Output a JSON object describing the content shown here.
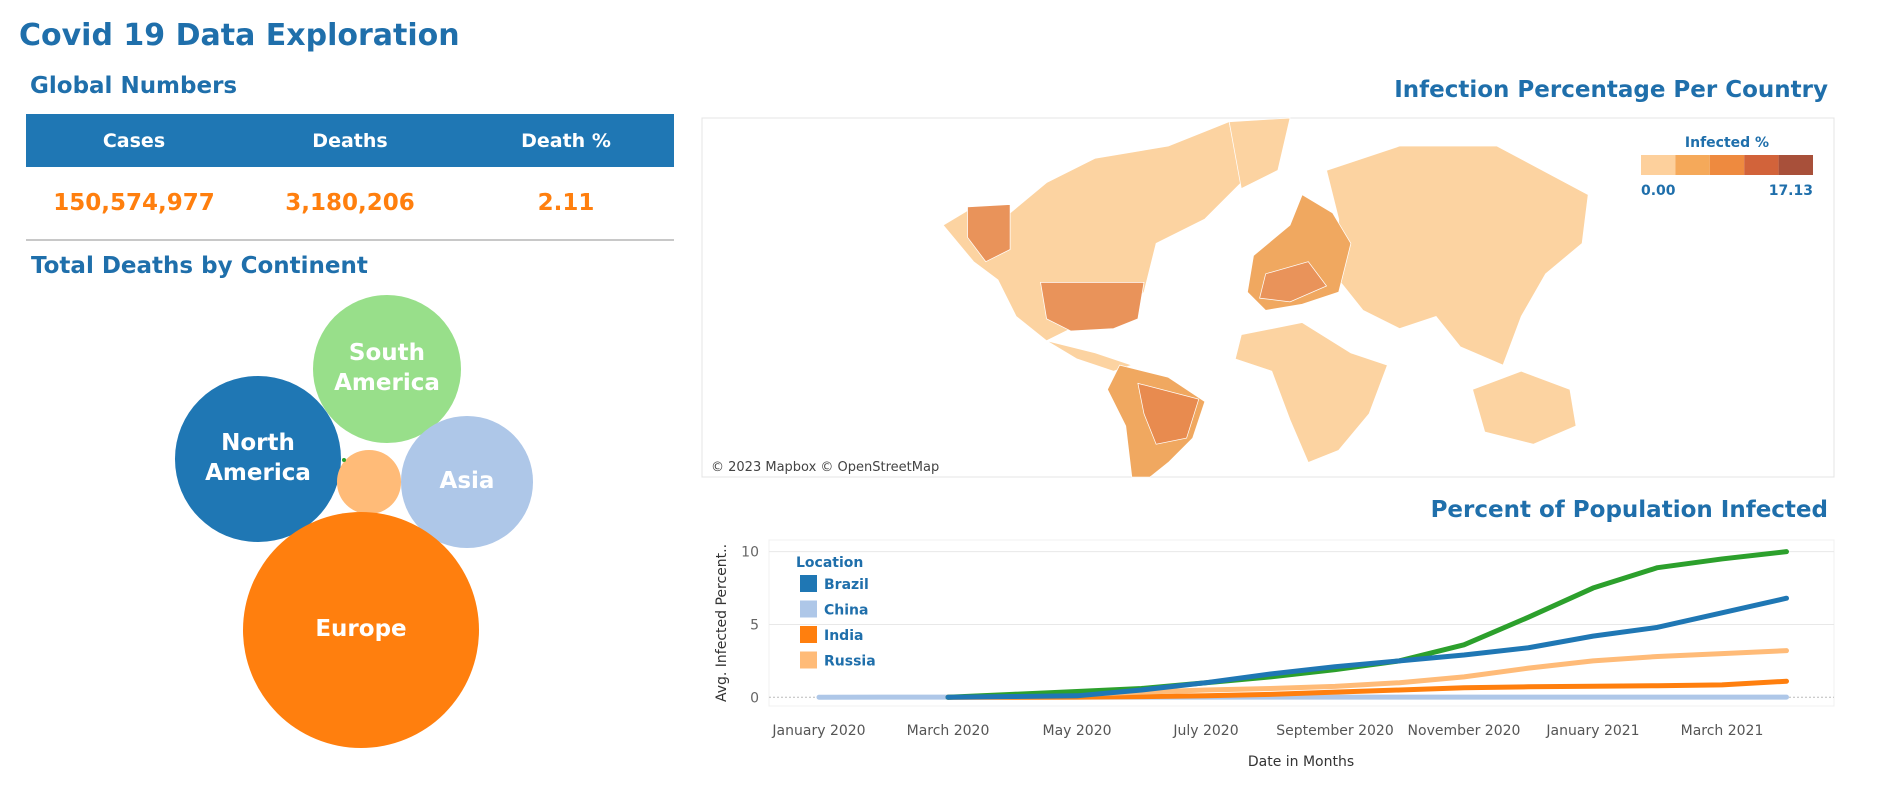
{
  "title": "Covid 19 Data Exploration",
  "global_numbers": {
    "title": "Global Numbers",
    "header": [
      "Cases",
      "Deaths",
      "Death %"
    ],
    "rows": [
      [
        "150,574,977",
        "3,180,206",
        "2.11"
      ]
    ]
  },
  "chart_data": [
    {
      "type": "bubble",
      "title": "Total Deaths by Continent",
      "categories": [
        "North America",
        "South America",
        "Asia",
        null,
        "Europe",
        null
      ],
      "values": [
        490000,
        395000,
        310000,
        72000,
        1000000,
        400
      ],
      "colors": [
        "#1f77b4",
        "#98df8a",
        "#aec7e8",
        "#ffbb78",
        "#ff7f0e",
        "#2ca02c"
      ]
    },
    {
      "type": "map",
      "title": "Infection Percentage Per Country",
      "legend_title": "Infected %",
      "legend_range": [
        {
          "value": 0,
          "label": "0.00"
        },
        {
          "value": 17.13,
          "label": "17.13"
        }
      ],
      "colors": [
        "#fdd09c",
        "#f5a95a",
        "#ee8a3f",
        "#d2633a",
        "#a8503a"
      ],
      "attribution": "© 2023 Mapbox © OpenStreetMap"
    },
    {
      "type": "line",
      "title": "Percent of Population Infected",
      "x": [
        "2020-01",
        "2020-02",
        "2020-03",
        "2020-04",
        "2020-05",
        "2020-06",
        "2020-07",
        "2020-08",
        "2020-09",
        "2020-10",
        "2020-11",
        "2020-12",
        "2021-01",
        "2021-02",
        "2021-03",
        "2021-04"
      ],
      "xticks": [
        {
          "value": "2020-01",
          "label": "January 2020"
        },
        {
          "value": "2020-03",
          "label": "March 2020"
        },
        {
          "value": "2020-05",
          "label": "May 2020"
        },
        {
          "value": "2020-07",
          "label": "July 2020"
        },
        {
          "value": "2020-09",
          "label": "September 2020"
        },
        {
          "value": "2020-11",
          "label": "November 2020"
        },
        {
          "value": "2021-01",
          "label": "January 2021"
        },
        {
          "value": "2021-03",
          "label": "March 2021"
        }
      ],
      "xlabel": "Date in Months",
      "ylabel": "Avg. Infected Percent..",
      "ylim": [
        -0.6,
        10.8
      ],
      "yticks": [
        0,
        5,
        10
      ],
      "grid": true,
      "legend_title": "Location",
      "series": [
        {
          "name": "Brazil",
          "color": "#1f77b4",
          "values": [
            null,
            null,
            0,
            0.05,
            0.1,
            0.5,
            1.0,
            1.6,
            2.1,
            2.5,
            2.9,
            3.4,
            4.2,
            4.8,
            5.8,
            6.8
          ]
        },
        {
          "name": "China",
          "color": "#aec7e8",
          "values": [
            0,
            0.01,
            0.01,
            0.01,
            0.01,
            0.01,
            0.01,
            0.01,
            0.01,
            0.01,
            0.01,
            0.01,
            0.01,
            0.01,
            0.01,
            0.01
          ]
        },
        {
          "name": "India",
          "color": "#ff7f0e",
          "values": [
            null,
            null,
            0,
            0,
            0.01,
            0.04,
            0.1,
            0.2,
            0.35,
            0.5,
            0.65,
            0.72,
            0.76,
            0.79,
            0.85,
            1.1
          ]
        },
        {
          "name": "Russia",
          "color": "#ffbb78",
          "values": [
            null,
            null,
            0,
            0.05,
            0.2,
            0.35,
            0.5,
            0.6,
            0.75,
            1.0,
            1.4,
            2.0,
            2.5,
            2.8,
            3.0,
            3.2
          ]
        },
        {
          "name": null,
          "color": "#2ca02c",
          "values": [
            null,
            null,
            0,
            0.2,
            0.4,
            0.6,
            1.0,
            1.4,
            1.9,
            2.5,
            3.6,
            5.5,
            7.5,
            8.9,
            9.5,
            10.0
          ]
        }
      ]
    }
  ]
}
